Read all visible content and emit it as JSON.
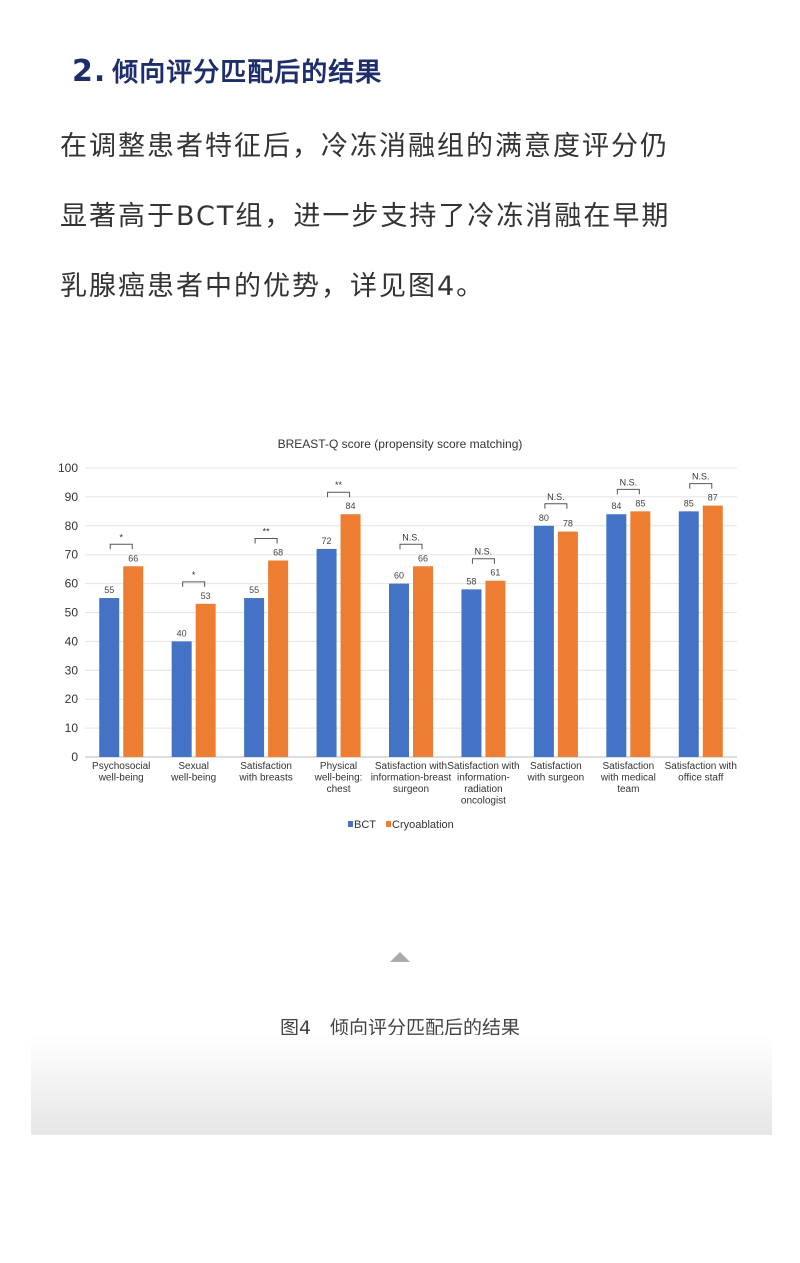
{
  "heading": {
    "number": "2.",
    "title": "倾向评分匹配后的结果"
  },
  "paragraph": [
    "在调整患者特征后，冷冻消融组的满意度评分仍",
    "显著高于BCT组，进一步支持了冷冻消融在早期",
    "乳腺癌患者中的优势，详见图4。"
  ],
  "caption": "图4　倾向评分匹配后的结果",
  "chart_data": {
    "type": "bar",
    "title": "BREAST-Q score (propensity score matching)",
    "ylim": [
      0,
      100
    ],
    "yticks": [
      0,
      10,
      20,
      30,
      40,
      50,
      60,
      70,
      80,
      90,
      100
    ],
    "grid": true,
    "legend": "bottom",
    "categories": [
      [
        "Psychosocial",
        "well-being"
      ],
      [
        "Sexual",
        "well-being"
      ],
      [
        "Satisfaction",
        "with breasts"
      ],
      [
        "Physical",
        "well-being:",
        "chest"
      ],
      [
        "Satisfaction with",
        "information-breast",
        "surgeon"
      ],
      [
        "Satisfaction with",
        "information-",
        "radiation",
        "oncologist"
      ],
      [
        "Satisfaction",
        "with surgeon"
      ],
      [
        "Satisfaction",
        "with medical",
        "team"
      ],
      [
        "Satisfaction with",
        "office staff"
      ]
    ],
    "series": [
      {
        "name": "BCT",
        "color": "#4472c4",
        "values": [
          55,
          40,
          55,
          72,
          60,
          58,
          80,
          84,
          85
        ]
      },
      {
        "name": "Cryoablation",
        "color": "#ed7d31",
        "values": [
          66,
          53,
          68,
          84,
          66,
          61,
          78,
          85,
          87
        ]
      }
    ],
    "significance": [
      "*",
      "*",
      "**",
      "**",
      "N.S.",
      "N.S.",
      "N.S.",
      "N.S.",
      "N.S."
    ]
  }
}
